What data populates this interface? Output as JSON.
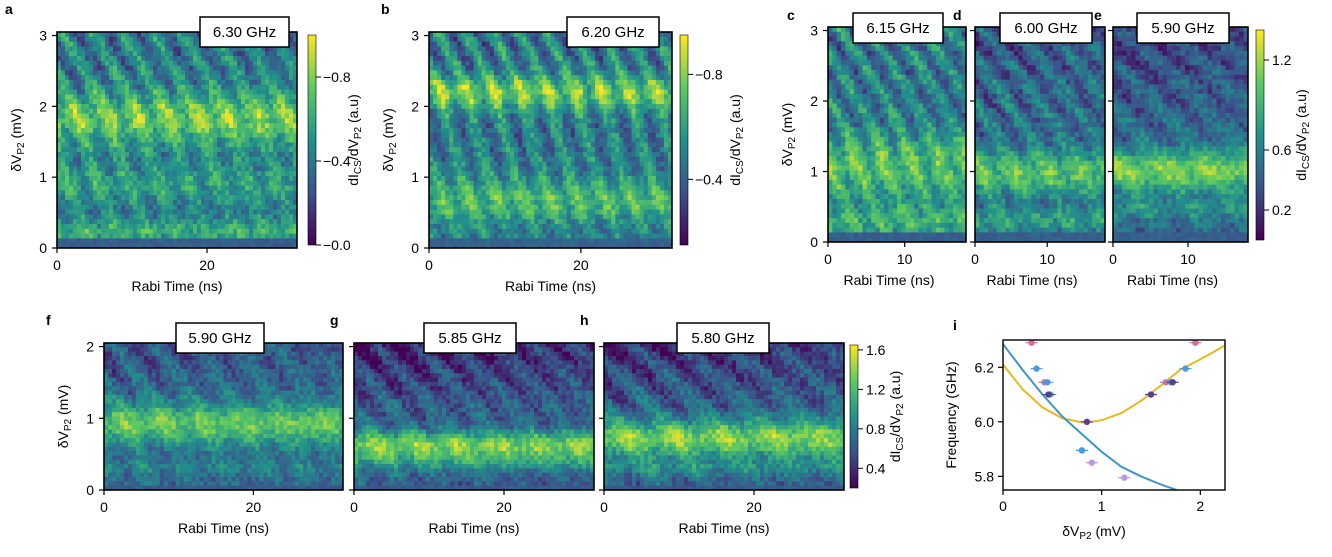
{
  "chart_data": [
    {
      "type": "heatmap",
      "panel_letter": "a",
      "frequency_label": "6.30 GHz",
      "xlabel": "Rabi Time (ns)",
      "xlim": [
        0,
        32
      ],
      "xticks": [
        0,
        20
      ],
      "ylim": [
        0,
        3.05
      ],
      "yticks": [
        0,
        1,
        2,
        3
      ],
      "colorbar": {
        "ticks": [
          "0.0",
          "0.4",
          "0.8"
        ],
        "range": [
          0,
          1.0
        ],
        "side": "left"
      }
    },
    {
      "type": "heatmap",
      "panel_letter": "b",
      "frequency_label": "6.20 GHz",
      "xlabel": "Rabi Time (ns)",
      "xlim": [
        0,
        32
      ],
      "xticks": [
        0,
        20
      ],
      "ylim": [
        0,
        3.05
      ],
      "yticks": [
        0,
        1,
        2,
        3
      ],
      "colorbar": {
        "ticks": [
          "0.4",
          "0.8"
        ],
        "range": [
          0.15,
          0.95
        ],
        "side": "left"
      }
    },
    {
      "type": "heatmap",
      "panel_letter": "c",
      "frequency_label": "6.15 GHz",
      "xlabel": "Rabi Time (ns)",
      "xlim": [
        0,
        18
      ],
      "xticks": [
        0,
        10
      ],
      "ylim": [
        0,
        3.05
      ],
      "yticks": [
        0,
        1,
        2,
        3
      ]
    },
    {
      "type": "heatmap",
      "panel_letter": "d",
      "frequency_label": "6.00 GHz",
      "xlabel": "Rabi Time (ns)",
      "xlim": [
        0,
        18
      ],
      "xticks": [
        0,
        10
      ],
      "ylim": [
        0,
        3.05
      ]
    },
    {
      "type": "heatmap",
      "panel_letter": "e",
      "frequency_label": "5.90 GHz",
      "xlabel": "Rabi Time (ns)",
      "xlim": [
        0,
        18
      ],
      "xticks": [
        0,
        10
      ],
      "ylim": [
        0,
        3.05
      ],
      "colorbar": {
        "ticks": [
          "0.2",
          "0.6",
          "1.2"
        ],
        "range": [
          0,
          1.4
        ],
        "side": "right"
      }
    },
    {
      "type": "heatmap",
      "panel_letter": "f",
      "frequency_label": "5.90 GHz",
      "xlabel": "Rabi Time (ns)",
      "xlim": [
        0,
        32
      ],
      "xticks": [
        0,
        20
      ],
      "ylim": [
        0,
        2.05
      ],
      "yticks": [
        0,
        1,
        2
      ]
    },
    {
      "type": "heatmap",
      "panel_letter": "g",
      "frequency_label": "5.85 GHz",
      "xlabel": "Rabi Time (ns)",
      "xlim": [
        0,
        32
      ],
      "xticks": [
        0,
        20
      ],
      "ylim": [
        0,
        2.05
      ]
    },
    {
      "type": "heatmap",
      "panel_letter": "h",
      "frequency_label": "5.80 GHz",
      "xlabel": "Rabi Time (ns)",
      "xlim": [
        0,
        32
      ],
      "xticks": [
        0,
        20
      ],
      "ylim": [
        0,
        2.05
      ],
      "colorbar": {
        "ticks": [
          "0.4",
          "0.8",
          "1.2",
          "1.6"
        ],
        "range": [
          0.2,
          1.65
        ],
        "side": "right"
      }
    },
    {
      "type": "scatter",
      "panel_letter": "i",
      "xlabel": "δVP2 (mV)",
      "ylabel": "Frequency (GHz)",
      "xlim": [
        0,
        2.25
      ],
      "ylim": [
        5.75,
        6.3
      ],
      "xticks": [
        "0",
        "1",
        "2"
      ],
      "yticks": [
        "5.8",
        "6.0",
        "6.2"
      ],
      "series": [
        {
          "marker_color": "#d36fa0",
          "points": [
            [
              0.29,
              6.29
            ],
            [
              0.42,
              6.145
            ],
            [
              0.8,
              5.895
            ],
            [
              1.65,
              6.145
            ],
            [
              1.95,
              6.29
            ]
          ]
        },
        {
          "marker_color": "#4c9be0",
          "points": [
            [
              0.34,
              6.195
            ],
            [
              0.45,
              6.145
            ],
            [
              0.48,
              6.1
            ],
            [
              0.8,
              5.895
            ],
            [
              1.5,
              6.1
            ],
            [
              1.7,
              6.145
            ],
            [
              1.85,
              6.195
            ]
          ]
        },
        {
          "marker_color": "#5b3f8c",
          "points": [
            [
              0.46,
              6.1
            ],
            [
              0.85,
              6.0
            ],
            [
              1.5,
              6.1
            ],
            [
              1.72,
              6.145
            ]
          ]
        },
        {
          "marker_color": "#b79be6",
          "points": [
            [
              0.9,
              5.85
            ],
            [
              1.23,
              5.795
            ]
          ]
        }
      ],
      "fits": [
        {
          "color": "#e8b820",
          "x": [
            0,
            0.2,
            0.4,
            0.6,
            0.8,
            0.9,
            1.0,
            1.2,
            1.4,
            1.6,
            1.8,
            2.0,
            2.25
          ],
          "y": [
            6.21,
            6.119,
            6.053,
            6.013,
            5.998,
            6.0,
            6.006,
            6.032,
            6.077,
            6.133,
            6.192,
            6.229,
            6.28
          ]
        },
        {
          "color": "#3d96c9",
          "x": [
            0,
            0.2,
            0.4,
            0.6,
            0.8,
            1.0,
            1.2,
            1.4,
            1.6,
            1.8
          ],
          "y": [
            6.285,
            6.19,
            6.1,
            6.02,
            5.955,
            5.89,
            5.835,
            5.8,
            5.77,
            5.745
          ]
        }
      ]
    }
  ],
  "labels": {
    "cb_label": "dI",
    "cb_sub1": "CS",
    "cb_mid": "/dV",
    "cb_sub2": "P2",
    "cb_tail": " (a.u)",
    "y_delta": "δV",
    "y_sub": "P2",
    "y_tail": " (mV)",
    "x_rabi": "Rabi Time (ns)",
    "i_xlabel_main": "δV",
    "i_xlabel_sub": "P2",
    "i_xlabel_tail": " (mV)",
    "i_ylabel": "Frequency (GHz)"
  }
}
